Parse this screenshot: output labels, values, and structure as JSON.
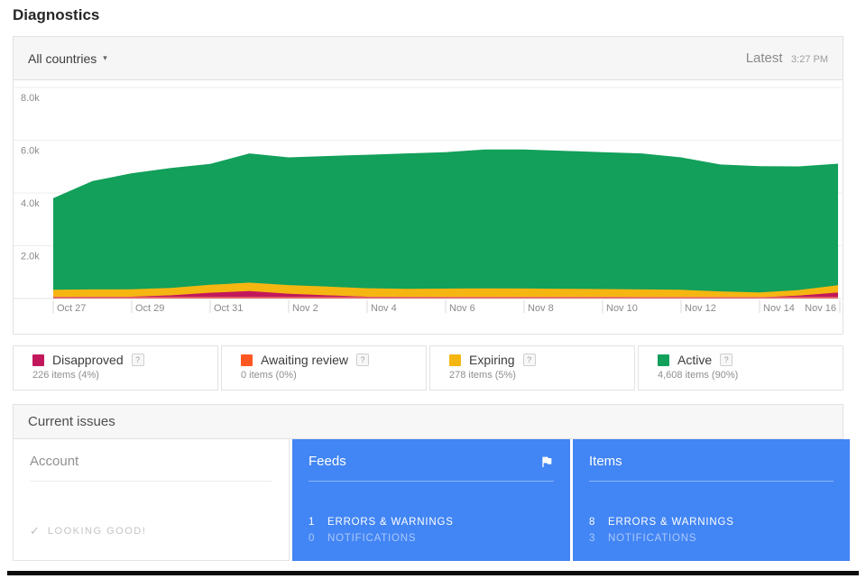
{
  "page": {
    "title": "Diagnostics"
  },
  "toolbar": {
    "filter_label": "All countries",
    "caret_icon": "▾",
    "latest_label": "Latest",
    "latest_time": "3:27 PM"
  },
  "chart_data": {
    "type": "area",
    "stacked": true,
    "title": "Item status over time (stacked area)",
    "x": [
      "Oct 27",
      "Oct 28",
      "Oct 29",
      "Oct 30",
      "Oct 31",
      "Nov 1",
      "Nov 2",
      "Nov 3",
      "Nov 4",
      "Nov 5",
      "Nov 6",
      "Nov 7",
      "Nov 8",
      "Nov 9",
      "Nov 10",
      "Nov 11",
      "Nov 12",
      "Nov 13",
      "Nov 14",
      "Nov 15",
      "Nov 16"
    ],
    "series": [
      {
        "name": "Disapproved",
        "color": "#C2185B",
        "values": [
          60,
          65,
          70,
          120,
          220,
          280,
          180,
          120,
          70,
          60,
          55,
          55,
          55,
          55,
          55,
          50,
          45,
          40,
          40,
          110,
          226
        ]
      },
      {
        "name": "Awaiting review",
        "color": "#FF5722",
        "values": [
          0,
          0,
          0,
          0,
          0,
          0,
          0,
          0,
          0,
          0,
          0,
          0,
          0,
          0,
          0,
          0,
          0,
          0,
          0,
          0,
          0
        ]
      },
      {
        "name": "Expiring",
        "color": "#F5B612",
        "values": [
          270,
          280,
          280,
          285,
          300,
          320,
          330,
          330,
          320,
          310,
          320,
          330,
          325,
          315,
          305,
          295,
          285,
          230,
          190,
          210,
          278
        ]
      },
      {
        "name": "Active",
        "color": "#12A05A",
        "values": [
          3470,
          4105,
          4400,
          4545,
          4580,
          4900,
          4840,
          4950,
          5060,
          5130,
          5175,
          5265,
          5270,
          5230,
          5190,
          5155,
          5020,
          4810,
          4790,
          4690,
          4608
        ]
      }
    ],
    "ylim": [
      0,
      8300
    ],
    "yticks": [
      2000,
      4000,
      6000,
      8000
    ],
    "ytick_labels": [
      "2.0k",
      "4.0k",
      "6.0k",
      "8.0k"
    ],
    "xtick_every": 2,
    "grid": true,
    "baseline_accent_color": "#EC7B72",
    "legend_position": "below"
  },
  "legend": {
    "items": [
      {
        "label": "Disapproved",
        "detail": "226 items (4%)",
        "color": "#C2185B",
        "help": "?"
      },
      {
        "label": "Awaiting review",
        "detail": "0 items (0%)",
        "color": "#FF5722",
        "help": "?"
      },
      {
        "label": "Expiring",
        "detail": "278 items (5%)",
        "color": "#F5B612",
        "help": "?"
      },
      {
        "label": "Active",
        "detail": "4,608 items (90%)",
        "color": "#12A05A",
        "help": "?"
      }
    ]
  },
  "issues": {
    "header": "Current issues",
    "cards": {
      "account": {
        "title": "Account",
        "status_icon": "✓",
        "status": "LOOKING GOOD!"
      },
      "feeds": {
        "title": "Feeds",
        "errors_count": "1",
        "errors_label": "ERRORS & WARNINGS",
        "notifications_count": "0",
        "notifications_label": "NOTIFICATIONS"
      },
      "items": {
        "title": "Items",
        "errors_count": "8",
        "errors_label": "ERRORS & WARNINGS",
        "notifications_count": "3",
        "notifications_label": "NOTIFICATIONS"
      }
    }
  }
}
